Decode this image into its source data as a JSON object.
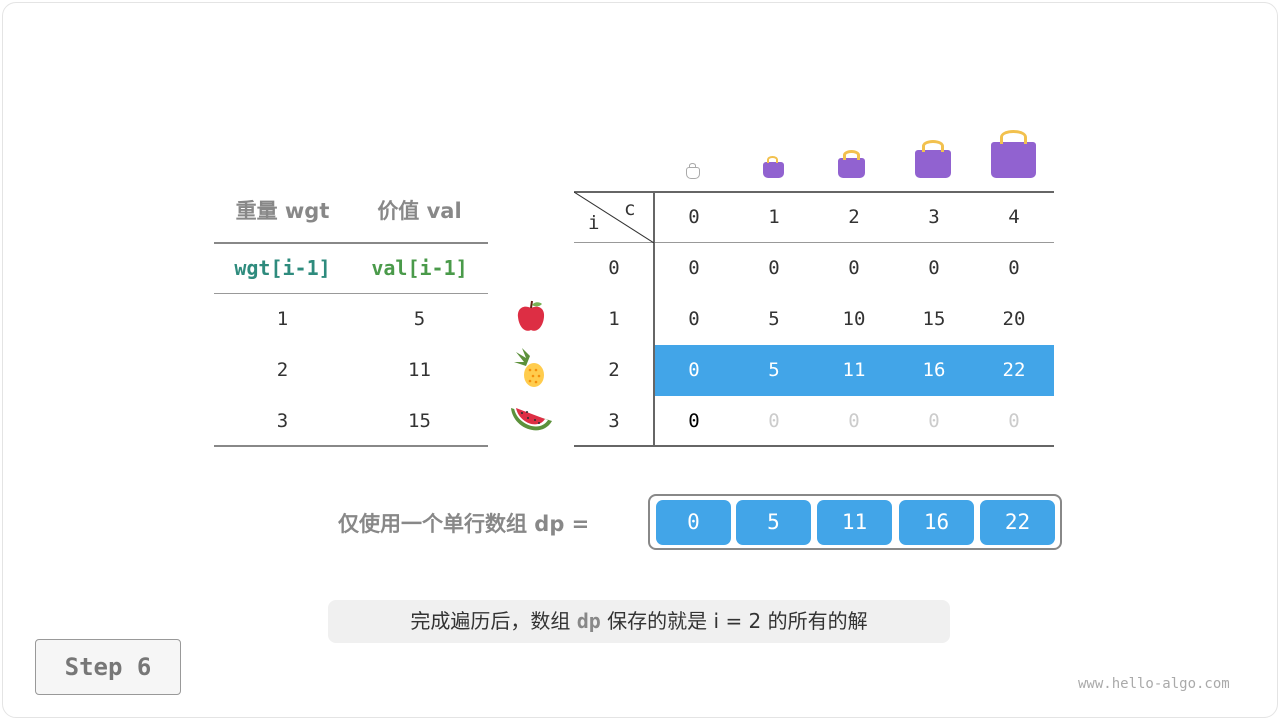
{
  "item_table": {
    "headers": [
      "重量 wgt",
      "价值 val"
    ],
    "subheaders": [
      "wgt[i-1]",
      "val[i-1]"
    ],
    "rows": [
      [
        "1",
        "5"
      ],
      [
        "2",
        "11"
      ],
      [
        "3",
        "15"
      ]
    ],
    "items": [
      "apple",
      "pineapple",
      "watermelon"
    ]
  },
  "dp_table": {
    "corner_row": "i",
    "corner_col": "c",
    "cols": [
      "0",
      "1",
      "2",
      "3",
      "4"
    ],
    "row_labels": [
      "0",
      "1",
      "2",
      "3"
    ],
    "cells": [
      [
        "0",
        "0",
        "0",
        "0",
        "0"
      ],
      [
        "0",
        "5",
        "10",
        "15",
        "20"
      ],
      [
        "0",
        "5",
        "11",
        "16",
        "22"
      ],
      [
        "0",
        "0",
        "0",
        "0",
        "0"
      ]
    ],
    "highlight_row": 2,
    "highlight_color": "#42a5e8"
  },
  "dp_label": "仅使用一个单行数组 dp =",
  "dp_values": [
    "0",
    "5",
    "11",
    "16",
    "22"
  ],
  "caption": {
    "pre": "完成遍历后，数组 ",
    "code": "dp",
    "post": " 保存的就是 i = 2 的所有的解"
  },
  "step_label": "Step 6",
  "watermark": "www.hello-algo.com"
}
